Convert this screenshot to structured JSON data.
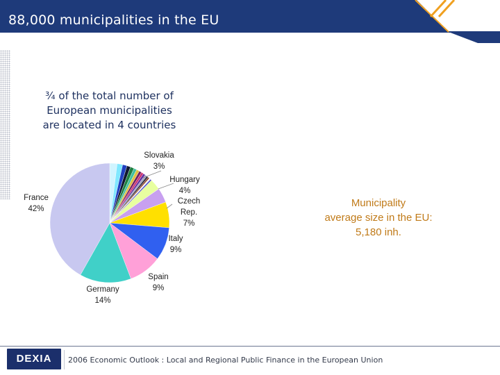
{
  "header": {
    "title": "88,000 municipalities in the EU",
    "bar_color": "#1e3a7a",
    "accent_color": "#f0a020"
  },
  "subtitle_lines": [
    "¾ of the total number of",
    "European municipalities",
    "are located in 4 countries"
  ],
  "average_note_lines": [
    "Municipality",
    "average size in the EU:",
    "5,180 inh."
  ],
  "footer": {
    "logo_text": "DEXIA",
    "text": "2006 Economic Outlook : Local and Regional Public Finance in the European Union"
  },
  "chart_data": {
    "type": "pie",
    "title": "",
    "slices": [
      {
        "name": "France",
        "pct_label": "42%",
        "value": 42,
        "color": "#c8c8f0"
      },
      {
        "name": "Germany",
        "pct_label": "14%",
        "value": 14,
        "color": "#40d0c8"
      },
      {
        "name": "Spain",
        "pct_label": "9%",
        "value": 9,
        "color": "#ffa0d8"
      },
      {
        "name": "Italy",
        "pct_label": "9%",
        "value": 9,
        "color": "#3060f0"
      },
      {
        "name": "Czech Rep.",
        "pct_label": "7%",
        "value": 7,
        "color": "#ffe000"
      },
      {
        "name": "Hungary",
        "pct_label": "4%",
        "value": 4,
        "color": "#c8a0f0"
      },
      {
        "name": "Slovakia",
        "pct_label": "3%",
        "value": 3,
        "color": "#e8ffa0"
      },
      {
        "name": "",
        "value": 2,
        "color": "#d0f4ff"
      },
      {
        "name": "",
        "value": 1.5,
        "color": "#80e8ff"
      },
      {
        "name": "",
        "value": 1.2,
        "color": "#2040c0"
      },
      {
        "name": "",
        "value": 1,
        "color": "#101830"
      },
      {
        "name": "",
        "value": 1,
        "color": "#208040"
      },
      {
        "name": "",
        "value": 0.8,
        "color": "#40c0a0"
      },
      {
        "name": "",
        "value": 0.8,
        "color": "#e0c040"
      },
      {
        "name": "",
        "value": 0.7,
        "color": "#702060"
      },
      {
        "name": "",
        "value": 0.6,
        "color": "#d03070"
      },
      {
        "name": "",
        "value": 0.6,
        "color": "#6030a0"
      },
      {
        "name": "",
        "value": 0.5,
        "color": "#a0a0c0"
      },
      {
        "name": "",
        "value": 0.5,
        "color": "#303040"
      },
      {
        "name": "",
        "value": 0.4,
        "color": "#904020"
      },
      {
        "name": "",
        "value": 0.4,
        "color": "#f0f0f0"
      },
      {
        "name": "",
        "value": 0.4,
        "color": "#5050d0"
      }
    ]
  }
}
